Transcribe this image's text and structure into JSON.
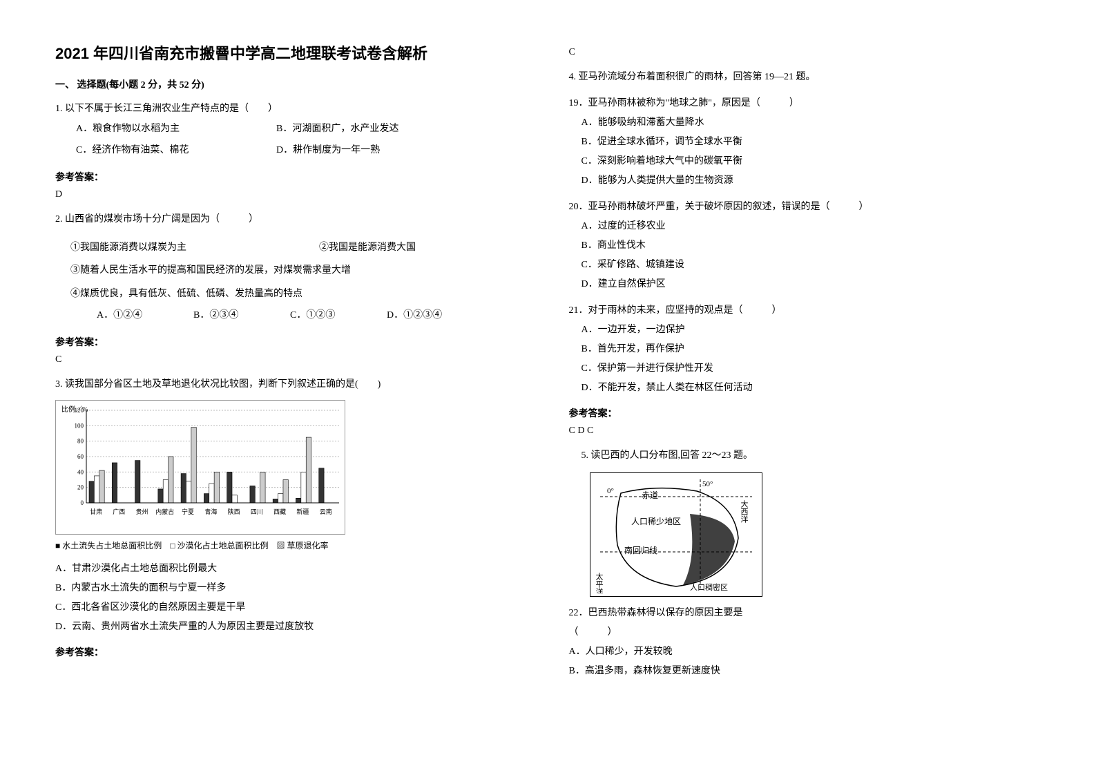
{
  "title": "2021 年四川省南充市搬罾中学高二地理联考试卷含解析",
  "section1": {
    "header": "一、 选择题(每小题 2 分，共 52 分)",
    "q1": {
      "stem": "1. 以下不属于长江三角洲农业生产特点的是（　　）",
      "opts": {
        "A": "A．粮食作物以水稻为主",
        "B": "B．河湖面积广，水产业发达",
        "C": "C．经济作物有油菜、棉花",
        "D": "D．耕作制度为一年一熟"
      },
      "ansLabel": "参考答案：",
      "ans": "D"
    },
    "q2": {
      "stem": "2. 山西省的煤炭市场十分广阔是因为（　　　）",
      "items": {
        "i1": "①我国能源消费以煤炭为主",
        "i2": "②我国是能源消费大国",
        "i3": "③随着人民生活水平的提高和国民经济的发展，对煤炭需求量大增",
        "i4": "④煤质优良，具有低灰、低硫、低磷、发热量高的特点"
      },
      "opts": {
        "A": "A．①②④",
        "B": "B．②③④",
        "C": "C．①②③",
        "D": "D．①②③④"
      },
      "ansLabel": "参考答案：",
      "ans": "C"
    },
    "q3": {
      "stem": "3. 读我国部分省区土地及草地退化状况比较图，判断下列叙述正确的是(　　)",
      "chart": {
        "ylabel": "比例／%",
        "ymax": 120,
        "ytick": 20,
        "provinces": [
          "甘肃",
          "广西",
          "贵州",
          "内蒙古",
          "宁夏",
          "青海",
          "陕西",
          "四川",
          "西藏",
          "新疆",
          "云南"
        ],
        "series": [
          {
            "name": "水土流失占土地总面积比例",
            "color": "#333333",
            "values": [
              28,
              52,
              55,
              18,
              38,
              12,
              40,
              22,
              5,
              6,
              45
            ]
          },
          {
            "name": "沙漠化占土地总面积比例",
            "color": "#ffffff",
            "values": [
              35,
              0,
              0,
              30,
              28,
              25,
              10,
              0,
              12,
              40,
              0
            ]
          },
          {
            "name": "草原退化率",
            "color": "#888888",
            "values": [
              42,
              0,
              0,
              60,
              98,
              40,
              0,
              40,
              30,
              85,
              0
            ]
          }
        ],
        "legend": "■ 水土流失占土地总面积比例　□ 沙漠化占土地总面积比例　▨ 草原退化率"
      },
      "opts": {
        "A": "A．甘肃沙漠化占土地总面积比例最大",
        "B": "B．内蒙古水土流失的面积与宁夏一样多",
        "C": "C．西北各省区沙漠化的自然原因主要是干旱",
        "D": "D．云南、贵州两省水土流失严重的人为原因主要是过度放牧"
      },
      "ansLabel": "参考答案：",
      "ans": "C"
    },
    "q4": {
      "stem": "4. 亚马孙流域分布着面积很广的雨林，回答第 19—21 题。",
      "q19": {
        "stem": "19．亚马孙雨林被称为\"地球之肺\"，原因是（　　　）",
        "A": "A．能够吸纳和滞蓄大量降水",
        "B": "B．促进全球水循环，调节全球水平衡",
        "C": "C．深刻影响着地球大气中的碳氧平衡",
        "D": "D．能够为人类提供大量的生物资源"
      },
      "q20": {
        "stem": "20．亚马孙雨林破坏严重，关于破坏原因的叙述，错误的是（　　　）",
        "A": "A．过度的迁移农业",
        "B": "B．商业性伐木",
        "C": "C．采矿修路、城镇建设",
        "D": "D．建立自然保护区"
      },
      "q21": {
        "stem": "21．对于雨林的未来，应坚持的观点是（　　　）",
        "A": "A．一边开发，一边保护",
        "B": "B．首先开发，再作保护",
        "C": "C．保护第一并进行保护性开发",
        "D": "D．不能开发，禁止人类在林区任何活动"
      },
      "ansLabel": "参考答案：",
      "ans": "C D C"
    },
    "q5": {
      "stem": "5. 读巴西的人口分布图,回答 22～23 题。",
      "map": {
        "labels": {
          "equator": "赤道",
          "tropic": "南回归线",
          "sparse": "人口稀少地区",
          "dense": "人口稠密区",
          "pacific": "太平洋",
          "atlantic": "大西洋",
          "lon": "50°",
          "lat": "0°"
        }
      },
      "q22": {
        "stem": "22．巴西热带森林得以保存的原因主要是",
        "paren": "（　　　）",
        "A": "A．人口稀少，开发较晚",
        "B": "B．高温多雨，森林恢复更新速度快"
      }
    }
  }
}
